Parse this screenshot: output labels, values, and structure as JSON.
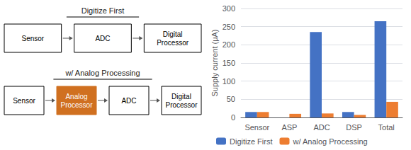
{
  "chart_data": {
    "type": "bar",
    "categories": [
      "Sensor",
      "ASP",
      "ADC",
      "DSP",
      "Total"
    ],
    "series": [
      {
        "name": "Digitize First",
        "color": "#4472C4",
        "values": [
          15,
          0,
          235,
          15,
          265
        ]
      },
      {
        "name": "w/ Analog Processing",
        "color": "#ED7D31",
        "values": [
          15,
          10,
          11,
          7,
          43
        ]
      }
    ],
    "ylabel": "Supply current (μA)",
    "ylim": [
      0,
      300
    ],
    "yticks": [
      0,
      50,
      100,
      150,
      200,
      250,
      300
    ],
    "grid": true,
    "legend": "bottom",
    "annotations": [
      {
        "text": "Digitize First",
        "boxes": [
          {
            "text": "Sensor"
          },
          {
            "text": "ADC"
          },
          {
            "text": "Digital\nProcessor"
          }
        ]
      },
      {
        "text": "w/ Analog Processing",
        "boxes": [
          {
            "text": "Sensor"
          },
          {
            "text": "Analog\nProcessor",
            "color": "#D07020"
          },
          {
            "text": "ADC"
          },
          {
            "text": "Digital\nProcessor"
          }
        ]
      }
    ]
  }
}
